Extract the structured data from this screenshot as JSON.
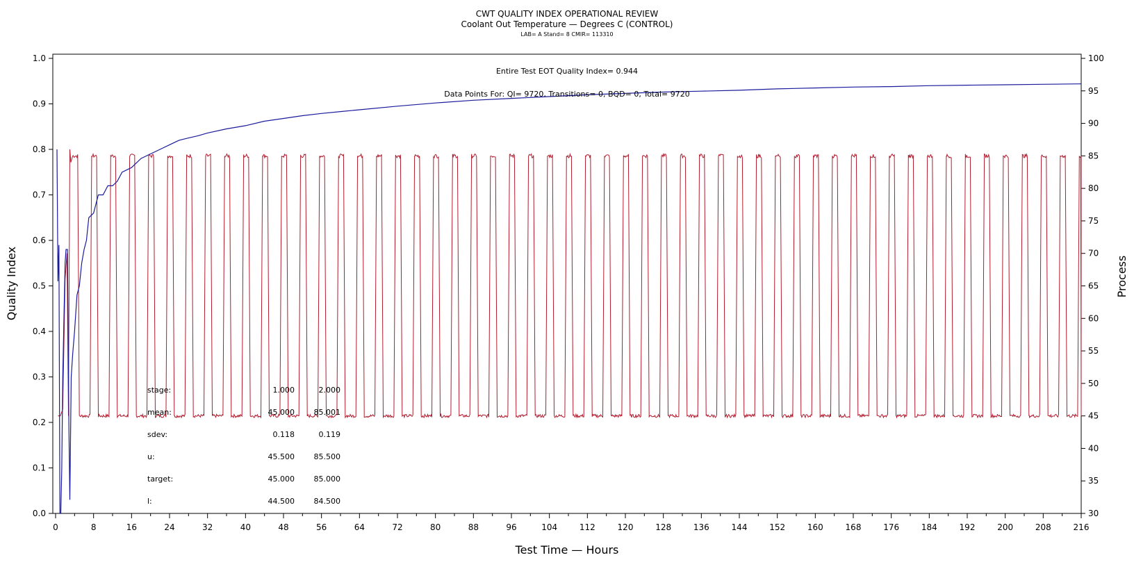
{
  "chart_data": {
    "type": "line",
    "title": "CWT QUALITY INDEX OPERATIONAL REVIEW",
    "subtitle": "Coolant Out Temperature — Degrees C (CONTROL)",
    "subtitle2": "LAB= A Stand= 8 CMIR= 113310",
    "xlabel": "Test Time — Hours",
    "ylabel": "Quality Index",
    "y2label": "Process",
    "xlim": [
      0,
      216
    ],
    "ylim": [
      0.0,
      1.0
    ],
    "y2lim": [
      30,
      100
    ],
    "x_ticks": [
      "0",
      "8",
      "16",
      "24",
      "32",
      "40",
      "48",
      "56",
      "64",
      "72",
      "80",
      "88",
      "96",
      "104",
      "112",
      "120",
      "128",
      "136",
      "144",
      "152",
      "160",
      "168",
      "176",
      "184",
      "192",
      "200",
      "208",
      "216"
    ],
    "y_ticks": [
      "0.0",
      "0.1",
      "0.2",
      "0.3",
      "0.4",
      "0.5",
      "0.6",
      "0.7",
      "0.8",
      "0.9",
      "1.0"
    ],
    "y2_ticks": [
      "30",
      "35",
      "40",
      "45",
      "50",
      "55",
      "60",
      "65",
      "70",
      "75",
      "80",
      "85",
      "90",
      "95",
      "100"
    ],
    "annotation_qi": "Entire Test EOT Quality Index=  0.944",
    "annotation_points": "Data Points For: QI=  9720, Transitions=    0, BQD=    0, Total=  9720",
    "stats": {
      "rows": [
        {
          "label": "stage:",
          "v1": "1.000",
          "v2": "2.000"
        },
        {
          "label": "mean:",
          "v1": "45.000",
          "v2": "85.001"
        },
        {
          "label": "sdev:",
          "v1": "0.118",
          "v2": "0.119"
        },
        {
          "label": "u:",
          "v1": "45.500",
          "v2": "85.500"
        },
        {
          "label": "target:",
          "v1": "45.000",
          "v2": "85.000"
        },
        {
          "label": "l:",
          "v1": "44.500",
          "v2": "84.500"
        }
      ]
    },
    "series": [
      {
        "name": "Quality Index",
        "color": "#1a1a9c",
        "axis": "left",
        "x": [
          0.3,
          0.5,
          0.7,
          0.9,
          1.1,
          1.3,
          1.5,
          1.8,
          2.0,
          2.2,
          2.5,
          2.8,
          3.0,
          3.3,
          3.6,
          4.0,
          4.5,
          5.0,
          5.5,
          6.0,
          6.5,
          7.0,
          8.0,
          9.0,
          10,
          11,
          12,
          13,
          14,
          16,
          18,
          20,
          22,
          24,
          26,
          28,
          30,
          32,
          36,
          40,
          44,
          48,
          52,
          56,
          60,
          64,
          72,
          80,
          88,
          96,
          104,
          112,
          120,
          128,
          136,
          144,
          152,
          160,
          168,
          176,
          184,
          192,
          200,
          208,
          216
        ],
        "y": [
          0.8,
          0.51,
          0.59,
          0.0,
          0.0,
          0.1,
          0.3,
          0.45,
          0.55,
          0.58,
          0.58,
          0.2,
          0.03,
          0.3,
          0.35,
          0.4,
          0.48,
          0.5,
          0.55,
          0.58,
          0.6,
          0.65,
          0.66,
          0.7,
          0.7,
          0.72,
          0.72,
          0.73,
          0.75,
          0.76,
          0.78,
          0.79,
          0.8,
          0.81,
          0.82,
          0.825,
          0.83,
          0.836,
          0.845,
          0.852,
          0.862,
          0.868,
          0.874,
          0.879,
          0.883,
          0.887,
          0.895,
          0.902,
          0.908,
          0.912,
          0.916,
          0.92,
          0.923,
          0.926,
          0.928,
          0.93,
          0.933,
          0.935,
          0.937,
          0.938,
          0.94,
          0.941,
          0.942,
          0.943,
          0.944
        ]
      },
      {
        "name": "Process",
        "color": "#b01c2e",
        "axis": "right",
        "pattern": "square_wave",
        "low": 45,
        "high": 85,
        "start_x": 3.0,
        "period": 4.0,
        "high_duration": 1.5,
        "ramp": 0.3,
        "initial": [
          [
            0.5,
            45
          ],
          [
            1.0,
            45
          ],
          [
            1.5,
            46
          ],
          [
            2.0,
            66
          ],
          [
            2.4,
            70
          ],
          [
            2.7,
            45
          ],
          [
            3.0,
            86
          ],
          [
            3.2,
            84
          ]
        ]
      }
    ]
  }
}
